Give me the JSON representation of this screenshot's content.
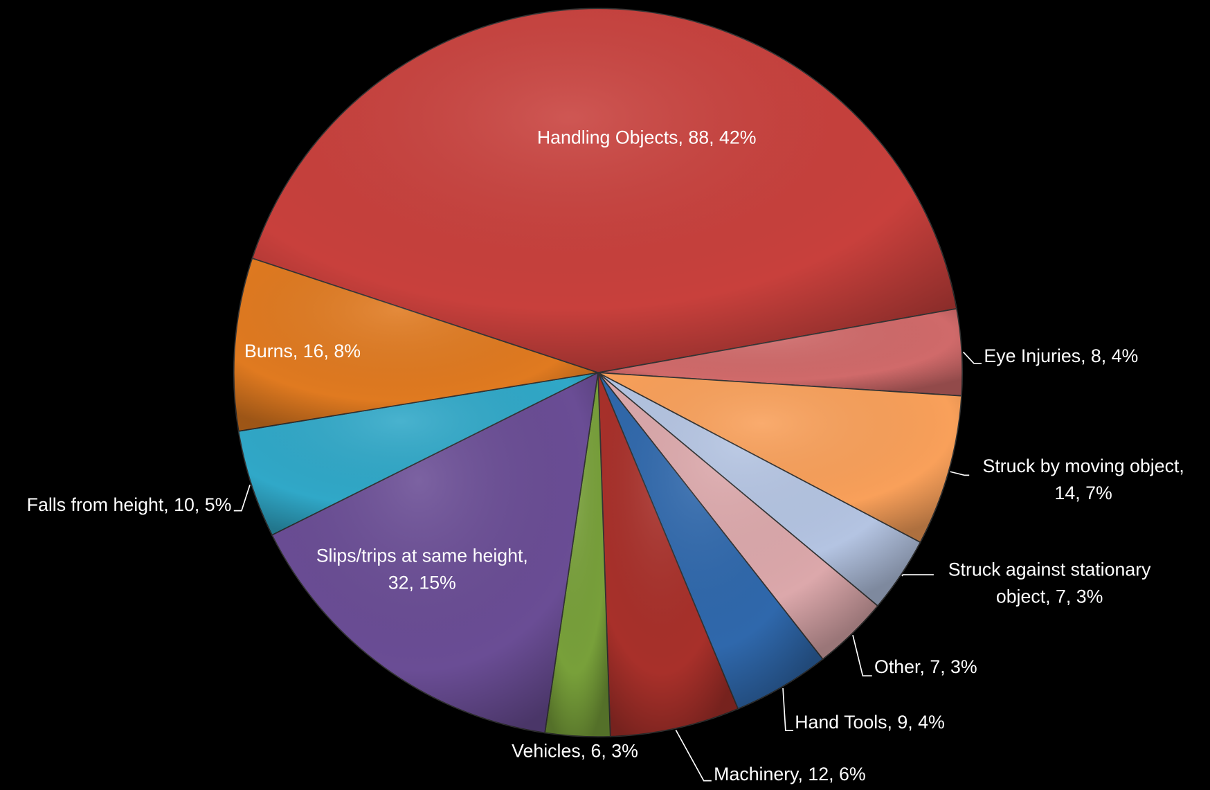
{
  "chart_data": {
    "type": "pie",
    "categories": [
      "Handling Objects",
      "Eye Injuries",
      "Struck by moving object",
      "Struck against stationary object",
      "Other",
      "Hand Tools",
      "Machinery",
      "Vehicles",
      "Slips/trips at same height",
      "Falls from height",
      "Burns"
    ],
    "values": [
      88,
      8,
      14,
      7,
      7,
      9,
      12,
      6,
      32,
      10,
      16
    ],
    "value_labels": [
      "Handling Objects, 88, 42%",
      "Eye Injuries, 8, 4%",
      "Struck by moving object,\n14, 7%",
      "Struck against stationary\nobject, 7, 3%",
      "Other, 7, 3%",
      "Hand Tools, 9, 4%",
      "Machinery, 12, 6%",
      "Vehicles, 6, 3%",
      "Slips/trips at same height,\n32, 15%",
      "Falls from height, 10, 5%",
      "Burns, 16, 8%"
    ],
    "colors": [
      "#c8403c",
      "#d06a6a",
      "#f9a05a",
      "#b4c4e2",
      "#dca8ab",
      "#2f68ac",
      "#a8302a",
      "#78a03a",
      "#6a4d95",
      "#30a8c8",
      "#e07a20"
    ]
  }
}
